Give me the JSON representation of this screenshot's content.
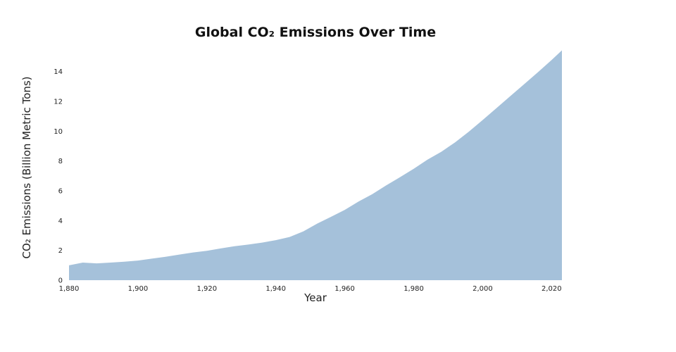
{
  "chart_data": {
    "type": "area",
    "title": "Global CO₂ Emissions Over Time",
    "xlabel": "Year",
    "ylabel": "CO₂ Emissions (Billion Metric Tons)",
    "xlim": [
      1880,
      2023
    ],
    "ylim": [
      0,
      15.5
    ],
    "x_ticks": [
      1880,
      1900,
      1920,
      1940,
      1960,
      1980,
      2000,
      2020
    ],
    "x_tick_labels": [
      "1,880",
      "1,900",
      "1,920",
      "1,940",
      "1,960",
      "1,980",
      "2,000",
      "2,020"
    ],
    "y_ticks": [
      0,
      2,
      4,
      6,
      8,
      10,
      12,
      14
    ],
    "y_tick_labels": [
      "0",
      "2",
      "4",
      "6",
      "8",
      "10",
      "12",
      "14"
    ],
    "grid": false,
    "legend": "none",
    "colors": {
      "fill": "#a5c1da"
    },
    "x": [
      1880,
      1884,
      1888,
      1892,
      1896,
      1900,
      1904,
      1908,
      1912,
      1916,
      1920,
      1924,
      1928,
      1932,
      1936,
      1940,
      1944,
      1948,
      1952,
      1956,
      1960,
      1964,
      1968,
      1972,
      1976,
      1980,
      1984,
      1988,
      1992,
      1996,
      2000,
      2004,
      2008,
      2012,
      2016,
      2020,
      2023
    ],
    "values": [
      1.0,
      1.18,
      1.13,
      1.18,
      1.24,
      1.32,
      1.45,
      1.57,
      1.72,
      1.86,
      1.97,
      2.13,
      2.28,
      2.39,
      2.52,
      2.69,
      2.9,
      3.28,
      3.8,
      4.25,
      4.72,
      5.28,
      5.78,
      6.36,
      6.91,
      7.48,
      8.09,
      8.62,
      9.25,
      9.97,
      10.75,
      11.55,
      12.35,
      13.15,
      13.95,
      14.78,
      15.43
    ]
  }
}
